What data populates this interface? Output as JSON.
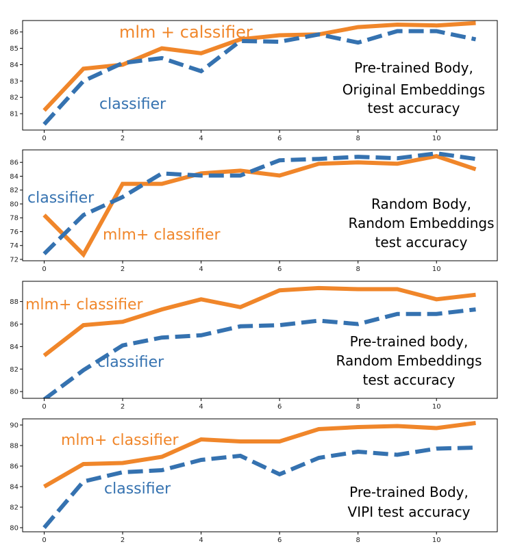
{
  "colors": {
    "mlm": "#f0862a",
    "classifier": "#3572b0",
    "frame": "#000000",
    "tick_text": "#222222",
    "title_text": "#000000"
  },
  "chart_data": [
    {
      "type": "line",
      "x": [
        0,
        1,
        2,
        3,
        4,
        5,
        6,
        7,
        8,
        9,
        10,
        11
      ],
      "xticks": [
        0,
        2,
        4,
        6,
        8,
        10
      ],
      "xlim": [
        -0.55,
        11.55
      ],
      "ylim": [
        80.0,
        86.7
      ],
      "yticks": [
        81,
        82,
        83,
        84,
        85,
        86
      ],
      "series": [
        {
          "name": "mlm + calssifier",
          "key": "mlm",
          "style": "solid",
          "values": [
            81.2,
            83.75,
            84.0,
            85.0,
            84.7,
            85.55,
            85.8,
            85.85,
            86.3,
            86.45,
            86.4,
            86.55
          ]
        },
        {
          "name": "classifier",
          "key": "classifier",
          "style": "dashed",
          "values": [
            80.35,
            83.0,
            84.1,
            84.4,
            83.6,
            85.45,
            85.4,
            85.85,
            85.35,
            86.05,
            86.05,
            85.55
          ]
        }
      ],
      "annotations": {
        "mlm": "mlm + calssifier",
        "classifier": "classifier",
        "title_lines": [
          "Pre-trained Body,",
          "Original Embeddings",
          "test accuracy"
        ]
      }
    },
    {
      "type": "line",
      "x": [
        0,
        1,
        2,
        3,
        4,
        5,
        6,
        7,
        8,
        9,
        10,
        11
      ],
      "xticks": [
        0,
        2,
        4,
        6,
        8,
        10
      ],
      "xlim": [
        -0.55,
        11.55
      ],
      "ylim": [
        71.8,
        87.8
      ],
      "yticks": [
        72,
        74,
        76,
        78,
        80,
        82,
        84,
        86
      ],
      "series": [
        {
          "name": "mlm+ classifier",
          "key": "mlm",
          "style": "solid",
          "values": [
            78.4,
            72.7,
            82.9,
            82.9,
            84.4,
            84.8,
            84.1,
            85.8,
            86.0,
            85.8,
            86.9,
            85.0
          ]
        },
        {
          "name": "classifier",
          "key": "classifier",
          "style": "dashed",
          "values": [
            72.8,
            78.4,
            81.0,
            84.4,
            84.1,
            84.1,
            86.3,
            86.5,
            86.8,
            86.6,
            87.3,
            86.5
          ]
        }
      ],
      "annotations": {
        "mlm": "mlm+ classifier",
        "classifier": "classifier",
        "title_lines": [
          "Random Body,",
          "Random Embeddings",
          "test accuracy"
        ]
      }
    },
    {
      "type": "line",
      "x": [
        0,
        1,
        2,
        3,
        4,
        5,
        6,
        7,
        8,
        9,
        10,
        11
      ],
      "xticks": [
        0,
        2,
        4,
        6,
        8,
        10
      ],
      "xlim": [
        -0.55,
        11.55
      ],
      "ylim": [
        79.4,
        89.8
      ],
      "yticks": [
        80,
        82,
        84,
        86,
        88
      ],
      "series": [
        {
          "name": "mlm+ classifier",
          "key": "mlm",
          "style": "solid",
          "values": [
            83.2,
            85.9,
            86.2,
            87.3,
            88.2,
            87.5,
            89.0,
            89.2,
            89.1,
            89.1,
            88.2,
            88.6
          ]
        },
        {
          "name": "classifier",
          "key": "classifier",
          "style": "dashed",
          "values": [
            79.3,
            81.9,
            84.1,
            84.8,
            85.0,
            85.8,
            85.9,
            86.3,
            86.0,
            86.9,
            86.9,
            87.3
          ]
        }
      ],
      "annotations": {
        "mlm": "mlm+ classifier",
        "classifier": "classifier",
        "title_lines": [
          "Pre-trained body,",
          "Random Embeddings",
          "test accuracy"
        ]
      }
    },
    {
      "type": "line",
      "x": [
        0,
        1,
        2,
        3,
        4,
        5,
        6,
        7,
        8,
        9,
        10,
        11
      ],
      "xticks": [
        0,
        2,
        4,
        6,
        8,
        10
      ],
      "xlim": [
        -0.55,
        11.55
      ],
      "ylim": [
        79.6,
        90.6
      ],
      "yticks": [
        80,
        82,
        84,
        86,
        88,
        90
      ],
      "series": [
        {
          "name": "mlm+ classifier",
          "key": "mlm",
          "style": "solid",
          "values": [
            84.0,
            86.2,
            86.3,
            86.9,
            88.6,
            88.4,
            88.4,
            89.6,
            89.8,
            89.9,
            89.7,
            90.2
          ]
        },
        {
          "name": "classifier",
          "key": "classifier",
          "style": "dashed",
          "values": [
            80.0,
            84.5,
            85.4,
            85.6,
            86.6,
            87.0,
            85.2,
            86.8,
            87.4,
            87.1,
            87.7,
            87.8
          ]
        }
      ],
      "annotations": {
        "mlm": "mlm+ classifier",
        "classifier": "classifier",
        "title_lines": [
          "Pre-trained Body,",
          "VIPI test accuracy"
        ]
      }
    }
  ]
}
